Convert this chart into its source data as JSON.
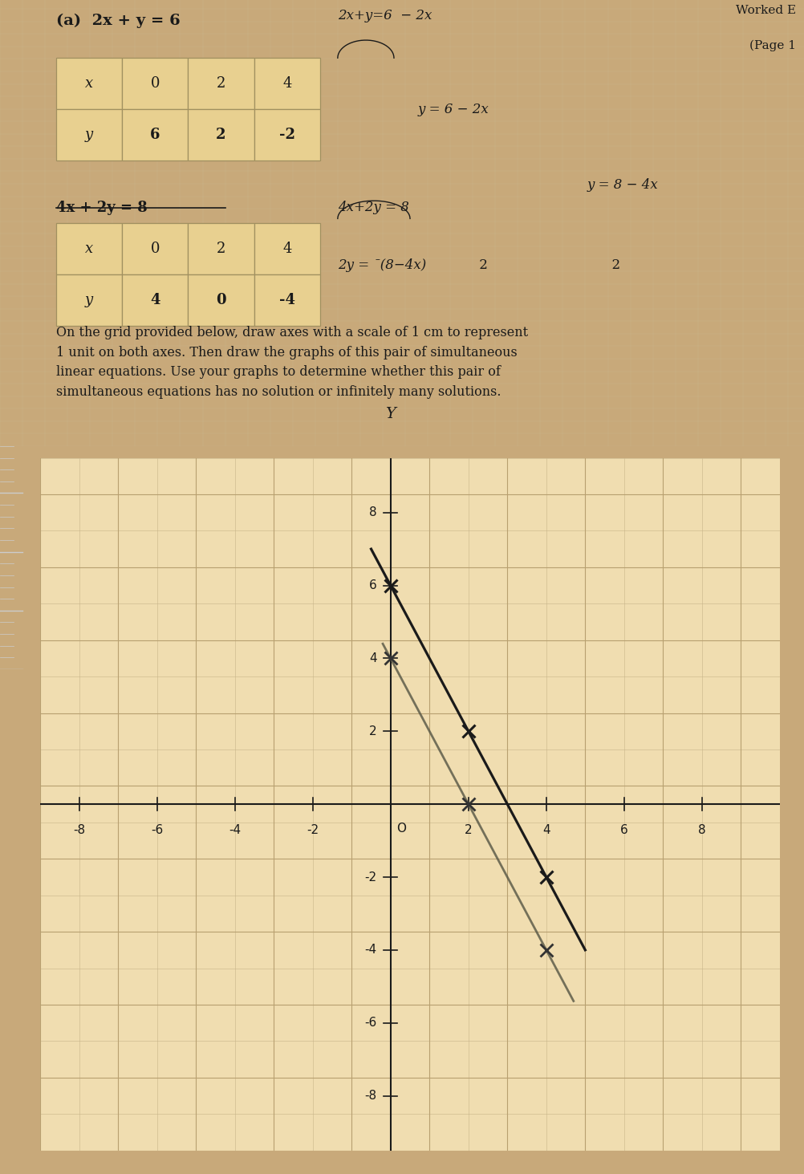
{
  "bg_color": "#c8a97a",
  "paper_color": "#f0ddb0",
  "grid_minor_color": "#c8b48a",
  "grid_major_color": "#b8a070",
  "axis_color": "#1a1a1a",
  "line1_color": "#1a1a1a",
  "line2_color": "#555544",
  "table_face": "#e8d090",
  "table_edge": "#a09060",
  "title1": "(a)  2x + y = 6",
  "label_eq2": "4x + 2y = 8",
  "table1_x": [
    "x",
    "0",
    "2",
    "4"
  ],
  "table1_y": [
    "y",
    "6",
    "2",
    "-2"
  ],
  "table2_x": [
    "x",
    "0",
    "2",
    "4"
  ],
  "table2_y": [
    "y",
    "4",
    "0",
    "-4"
  ],
  "worked_text": "Worked E",
  "page_text": "(Page 1",
  "rhs1a": "2x+y=6  −2x",
  "rhs1b": "y=6−2x",
  "rhs2a": "4x+2y=8",
  "rhs2b": "y=8−4x",
  "rhs2c": "2y=¯(8−4x)",
  "rhs2d": "     2",
  "rhs2e": "y=¯(8−4x)",
  "rhs2f": "       2",
  "instruction": "On the grid provided below, draw axes with a scale of 1 cm to represent\n1 unit on both axes. Then draw the graphs of this pair of simultaneous\nlinear equations. Use your graphs to determine whether this pair of\nsimultaneous equations has no solution or infinitely many solutions.",
  "xmin": -9,
  "xmax": 10,
  "ymin": -9.5,
  "ymax": 9.5,
  "xtick_labels": [
    "-8",
    "-6",
    "-4",
    "-2",
    "2",
    "4",
    "6",
    "8"
  ],
  "xtick_vals": [
    -8,
    -6,
    -4,
    -2,
    2,
    4,
    6,
    8
  ],
  "ytick_labels": [
    "-8",
    "-6",
    "-4",
    "-2",
    "2",
    "4",
    "6",
    "8"
  ],
  "ytick_vals": [
    -8,
    -6,
    -4,
    -2,
    2,
    4,
    6,
    8
  ],
  "line1_m": -2,
  "line1_b": 6,
  "line2_m": -2,
  "line2_b": 4,
  "pts1x": [
    0,
    2,
    4
  ],
  "pts1y": [
    6,
    2,
    -2
  ],
  "pts2x": [
    0,
    2,
    4
  ],
  "pts2y": [
    4,
    0,
    -4
  ]
}
